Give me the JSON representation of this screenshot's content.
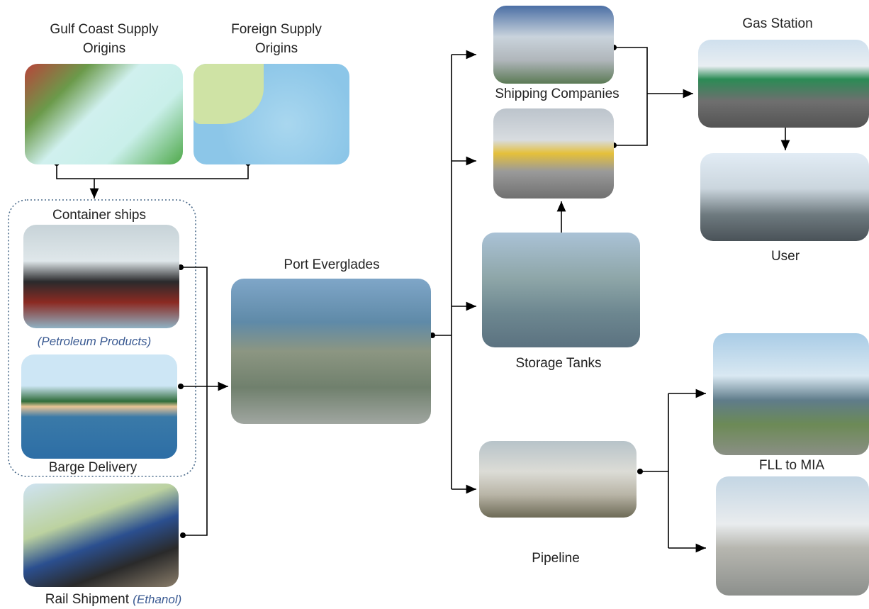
{
  "sources": {
    "gulf_coast": {
      "label": "Gulf Coast Supply Origins"
    },
    "foreign": {
      "label": "Foreign Supply Origins"
    }
  },
  "transport": {
    "group_title": "Container ships",
    "container_note": "(Petroleum Products)",
    "barge": {
      "label": "Barge Delivery"
    },
    "rail": {
      "label": "Rail Shipment",
      "note": "(Ethanol)"
    }
  },
  "port": {
    "label": "Port Everglades"
  },
  "distribution": {
    "shipping": {
      "label": "Shipping Companies"
    },
    "storage": {
      "label": "Storage Tanks"
    },
    "pipeline": {
      "label": "Pipeline"
    }
  },
  "destinations": {
    "gas_station": {
      "label": "Gas Station"
    },
    "user": {
      "label": "User"
    },
    "airport": {
      "label": "FLL to MIA"
    }
  }
}
